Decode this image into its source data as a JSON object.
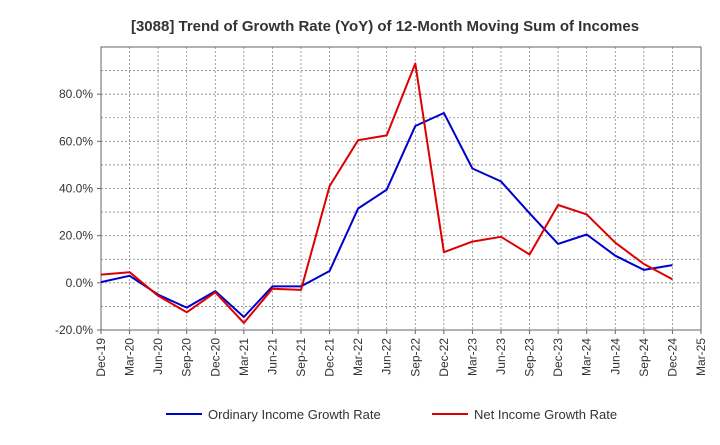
{
  "chart_data": {
    "type": "line",
    "title": "[3088]  Trend of Growth Rate (YoY) of 12-Month Moving Sum of Incomes",
    "xlabel": "",
    "ylabel": "",
    "ylim": [
      -20,
      100
    ],
    "y_ticks": [
      -20,
      0,
      20,
      40,
      60,
      80
    ],
    "y_tick_labels": [
      "-20.0%",
      "0.0%",
      "20.0%",
      "40.0%",
      "60.0%",
      "80.0%"
    ],
    "x": [
      "Dec-19",
      "Mar-20",
      "Jun-20",
      "Sep-20",
      "Dec-20",
      "Mar-21",
      "Jun-21",
      "Sep-21",
      "Dec-21",
      "Mar-22",
      "Jun-22",
      "Sep-22",
      "Dec-22",
      "Mar-23",
      "Jun-23",
      "Sep-23",
      "Dec-23",
      "Mar-24",
      "Jun-24",
      "Sep-24",
      "Dec-24",
      "Mar-25"
    ],
    "grid": true,
    "legend_position": "bottom",
    "series": [
      {
        "name": "Ordinary Income Growth Rate",
        "color": "#0000cc",
        "values": [
          0.3,
          3.0,
          -5.0,
          -10.5,
          -3.5,
          -14.5,
          -1.5,
          -1.5,
          5.0,
          31.5,
          39.5,
          66.5,
          72.0,
          48.5,
          43.0,
          29.5,
          16.5,
          20.5,
          11.5,
          5.5,
          7.5,
          null
        ]
      },
      {
        "name": "Net Income Growth Rate",
        "color": "#dd0000",
        "values": [
          3.5,
          4.5,
          -5.5,
          -12.5,
          -4.0,
          -17.0,
          -2.5,
          -3.0,
          41.0,
          60.5,
          62.5,
          93.0,
          13.0,
          17.5,
          19.5,
          12.0,
          33.0,
          29.0,
          17.0,
          8.0,
          1.5,
          null
        ]
      }
    ]
  }
}
